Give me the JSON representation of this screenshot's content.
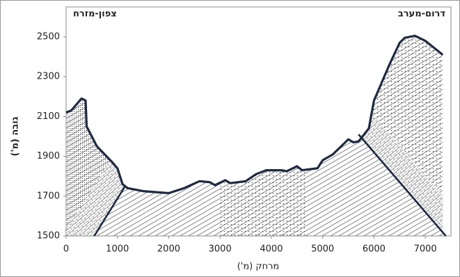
{
  "chart_data": {
    "type": "line",
    "title_left": "צפון-מזרח",
    "title_right": "דרום-מערב",
    "xlabel": "מרחק (מ')",
    "ylabel": "גובה (מ')",
    "xlim": [
      0,
      7500
    ],
    "ylim": [
      1500,
      2650
    ],
    "xticks": [
      0,
      1000,
      2000,
      3000,
      4000,
      5000,
      6000,
      7000
    ],
    "yticks": [
      1500,
      1700,
      1900,
      2100,
      2300,
      2500
    ],
    "series": [
      {
        "color": "#1c2a44",
        "x": [
          0,
          100,
          300,
          380,
          400,
          600,
          900,
          1000,
          1100,
          1200,
          1500,
          2000,
          2300,
          2600,
          2800,
          2900,
          3100,
          3200,
          3500,
          3700,
          3900,
          4200,
          4300,
          4500,
          4600,
          4900,
          5000,
          5200,
          5400,
          5500,
          5600,
          5700,
          5900,
          6000,
          6200,
          6300,
          6500,
          6600,
          6800,
          7000,
          7340
        ],
        "values": [
          2120,
          2130,
          2190,
          2180,
          2050,
          1950,
          1870,
          1840,
          1760,
          1740,
          1725,
          1715,
          1740,
          1775,
          1770,
          1755,
          1780,
          1765,
          1775,
          1810,
          1830,
          1830,
          1825,
          1850,
          1830,
          1840,
          1880,
          1910,
          1960,
          1985,
          1970,
          1975,
          2040,
          2180,
          2300,
          2360,
          2470,
          2495,
          2505,
          2480,
          2410
        ]
      },
      {
        "color": "#1c2a44",
        "x": [
          550,
          1150
        ],
        "values": [
          1500,
          1750
        ]
      },
      {
        "color": "#1c2a44",
        "x": [
          5700,
          7400
        ],
        "values": [
          2010,
          1500
        ]
      }
    ]
  }
}
